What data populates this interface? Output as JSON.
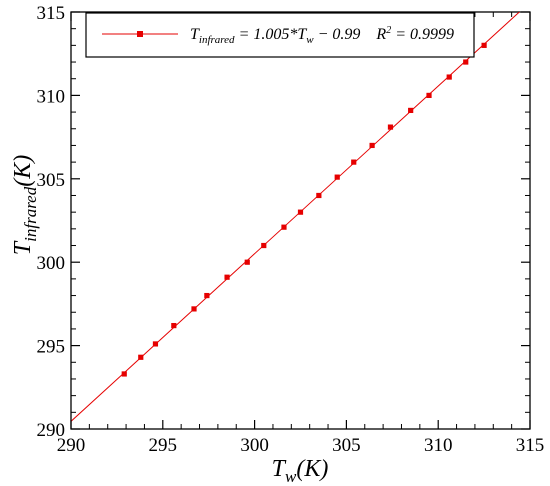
{
  "chart_data": {
    "type": "scatter",
    "xlabel_main": "T",
    "xlabel_sub": "w",
    "xlabel_tail": "(K)",
    "ylabel_main": "T",
    "ylabel_sub": "infrared",
    "ylabel_tail": "(K)",
    "xlim": [
      290,
      315
    ],
    "ylim": [
      290,
      315
    ],
    "x_ticks": [
      290,
      295,
      300,
      305,
      310,
      315
    ],
    "y_ticks": [
      290,
      295,
      300,
      305,
      310,
      315
    ],
    "grid": false,
    "legend_position": "top-right",
    "legend": {
      "t": "T",
      "t_sub": "infrared",
      "eq": " = 1.005*T",
      "eq_sub": "w",
      "eq_tail": " − 0.99",
      "r": "R",
      "r_sup": "2",
      "r_tail": " = 0.9999"
    },
    "colors": {
      "series": "#e60000",
      "axis": "#000000"
    },
    "fit": {
      "slope": 1.005,
      "intercept": -0.99
    },
    "series": [
      {
        "marker": "square",
        "x": [
          292.9,
          293.8,
          294.6,
          295.6,
          296.7,
          297.4,
          298.5,
          299.6,
          300.5,
          301.6,
          302.5,
          303.5,
          304.5,
          305.4,
          306.4,
          307.4,
          308.5,
          309.5,
          310.6,
          311.5,
          312.5
        ],
        "y": [
          293.3,
          294.3,
          295.1,
          296.2,
          297.2,
          298.0,
          299.1,
          300.0,
          301.0,
          302.1,
          303.0,
          304.0,
          305.1,
          306.0,
          307.0,
          308.1,
          309.1,
          310.0,
          311.1,
          312.0,
          313.0
        ]
      }
    ]
  }
}
